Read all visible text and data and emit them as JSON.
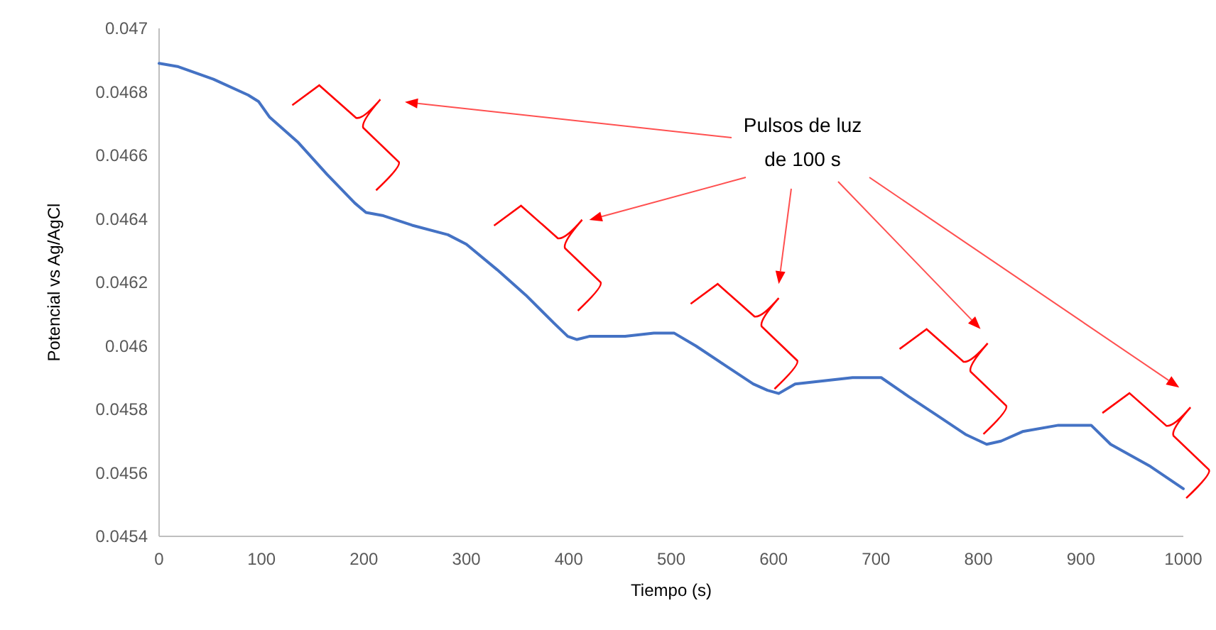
{
  "chart_data": {
    "type": "line",
    "xlabel": "Tiempo (s)",
    "ylabel": "Potencial vs Ag/AgCl",
    "annotations": [
      "Pulsos de luz de 100 s"
    ],
    "xlim": [
      0,
      1000
    ],
    "xticks": [
      0,
      100,
      200,
      300,
      400,
      500,
      600,
      700,
      800,
      900,
      1000
    ],
    "ylim": [
      0.0454,
      0.047
    ],
    "yticks": [
      0.0454,
      0.0456,
      0.0458,
      0.046,
      0.0462,
      0.0464,
      0.0466,
      0.0468,
      0.047
    ],
    "grid": false,
    "marker": "none",
    "line_style": "solid",
    "series": [
      {
        "color": "#4472c4",
        "x": [
          0,
          18,
          53,
          87,
          97,
          108,
          136,
          164,
          191,
          202,
          219,
          247,
          282,
          300,
          330,
          358,
          386,
          399,
          408,
          420,
          455,
          483,
          503,
          524,
          552,
          580,
          594,
          605,
          621,
          649,
          677,
          705,
          732,
          760,
          788,
          808,
          822,
          843,
          878,
          910,
          929,
          968,
          1000
        ],
        "values": [
          0.04689,
          0.04688,
          0.04684,
          0.04679,
          0.04677,
          0.04672,
          0.04664,
          0.04654,
          0.04645,
          0.04642,
          0.04641,
          0.04638,
          0.04635,
          0.04632,
          0.04624,
          0.04616,
          0.04607,
          0.04603,
          0.04602,
          0.04603,
          0.04603,
          0.04604,
          0.04604,
          0.046,
          0.04594,
          0.04588,
          0.04586,
          0.04585,
          0.04588,
          0.04589,
          0.0459,
          0.0459,
          0.04584,
          0.04578,
          0.04572,
          0.04569,
          0.0457,
          0.04573,
          0.04575,
          0.04575,
          0.04569,
          0.04562,
          0.04555
        ]
      }
    ]
  }
}
